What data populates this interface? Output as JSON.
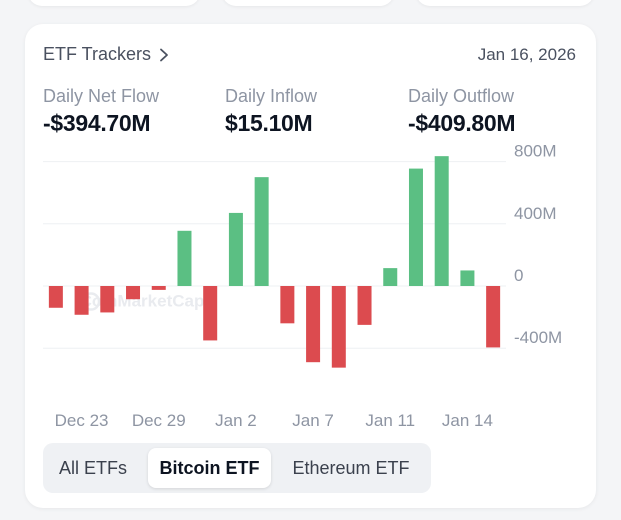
{
  "header": {
    "title": "ETF Trackers",
    "date": "Jan 16, 2026"
  },
  "stats": [
    {
      "label": "Daily Net Flow",
      "value": "-$394.70M"
    },
    {
      "label": "Daily Inflow",
      "value": "$15.10M"
    },
    {
      "label": "Daily Outflow",
      "value": "-$409.80M"
    }
  ],
  "watermark": "CoinMarketCap",
  "tabs": [
    {
      "label": "All ETFs",
      "active": false
    },
    {
      "label": "Bitcoin ETF",
      "active": true
    },
    {
      "label": "Ethereum ETF",
      "active": false
    }
  ],
  "colors": {
    "positive": "#5bbf83",
    "negative": "#dc4b4f"
  },
  "chart_data": {
    "type": "bar",
    "title": "",
    "xlabel": "",
    "ylabel": "",
    "ylim": [
      -500,
      900
    ],
    "yticks": [
      800,
      400,
      0,
      -400
    ],
    "ytick_labels": [
      "800M",
      "400M",
      "0",
      "-400M"
    ],
    "xtick_labels": [
      "Dec 23",
      "Dec 29",
      "Jan 2",
      "Jan 7",
      "Jan 11",
      "Jan 14"
    ],
    "xtick_index": [
      1,
      4,
      7,
      10,
      13,
      16
    ],
    "values": [
      -140,
      -185,
      -170,
      -85,
      -25,
      355,
      -350,
      470,
      700,
      -240,
      -490,
      -525,
      -250,
      115,
      755,
      835,
      100,
      -395
    ]
  }
}
